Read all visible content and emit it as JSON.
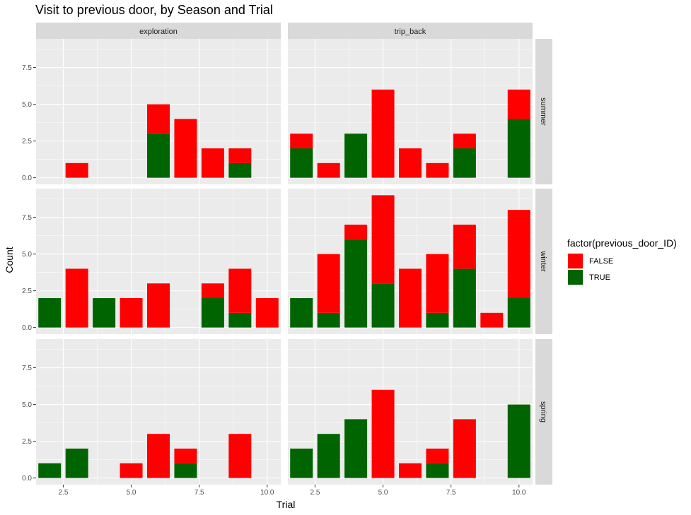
{
  "chart_data": {
    "type": "bar",
    "stacked": true,
    "title": "Visit to previous door, by Season and Trial",
    "xlabel": "Trial",
    "ylabel": "Count",
    "xlim": [
      1.5,
      10.5
    ],
    "ylim": [
      -0.45,
      9.45
    ],
    "x_ticks": [
      2.5,
      5.0,
      7.5,
      10.0
    ],
    "x_tick_labels": [
      "2.5",
      "5.0",
      "7.5",
      "10.0"
    ],
    "y_ticks": [
      0,
      2.5,
      5,
      7.5
    ],
    "y_tick_labels": [
      "0.0",
      "2.5",
      "5.0",
      "7.5"
    ],
    "grid": true,
    "facet_cols": [
      "exploration",
      "trip_back"
    ],
    "facet_rows": [
      "summer",
      "winter",
      "spring"
    ],
    "legend": {
      "title": "factor(previous_door_ID)",
      "position": "right",
      "entries": [
        {
          "label": "FALSE",
          "color": "#ff0000"
        },
        {
          "label": "TRUE",
          "color": "#006400"
        }
      ]
    },
    "panels": [
      {
        "row": "summer",
        "col": "exploration",
        "x": [
          3,
          6,
          7,
          8,
          9
        ],
        "TRUE": [
          0,
          3,
          0,
          0,
          1
        ],
        "FALSE": [
          1,
          2,
          4,
          2,
          1
        ]
      },
      {
        "row": "summer",
        "col": "trip_back",
        "x": [
          2,
          3,
          4,
          5,
          6,
          7,
          8,
          10
        ],
        "TRUE": [
          2,
          0,
          3,
          0,
          0,
          0,
          2,
          4
        ],
        "FALSE": [
          1,
          1,
          0,
          6,
          2,
          1,
          1,
          2
        ]
      },
      {
        "row": "winter",
        "col": "exploration",
        "x": [
          2,
          3,
          4,
          5,
          6,
          8,
          9,
          10
        ],
        "TRUE": [
          2,
          0,
          2,
          0,
          0,
          2,
          1,
          0
        ],
        "FALSE": [
          0,
          4,
          0,
          2,
          3,
          1,
          3,
          2
        ]
      },
      {
        "row": "winter",
        "col": "trip_back",
        "x": [
          2,
          3,
          4,
          5,
          6,
          7,
          8,
          9,
          10
        ],
        "TRUE": [
          2,
          1,
          6,
          3,
          0,
          1,
          4,
          0,
          2
        ],
        "FALSE": [
          0,
          4,
          1,
          6,
          4,
          4,
          3,
          1,
          6
        ]
      },
      {
        "row": "spring",
        "col": "exploration",
        "x": [
          2,
          3,
          5,
          6,
          7,
          9
        ],
        "TRUE": [
          1,
          2,
          0,
          0,
          1,
          0
        ],
        "FALSE": [
          0,
          0,
          1,
          3,
          1,
          3
        ]
      },
      {
        "row": "spring",
        "col": "trip_back",
        "x": [
          2,
          3,
          4,
          5,
          6,
          7,
          8,
          10
        ],
        "TRUE": [
          2,
          3,
          4,
          0,
          0,
          1,
          0,
          5
        ],
        "FALSE": [
          0,
          0,
          0,
          6,
          1,
          1,
          4,
          0
        ]
      }
    ]
  },
  "colors": {
    "panel_bg": "#ebebeb",
    "strip_bg": "#d9d9d9",
    "grid_major": "#ffffff",
    "false": "#ff0000",
    "true": "#006400"
  }
}
